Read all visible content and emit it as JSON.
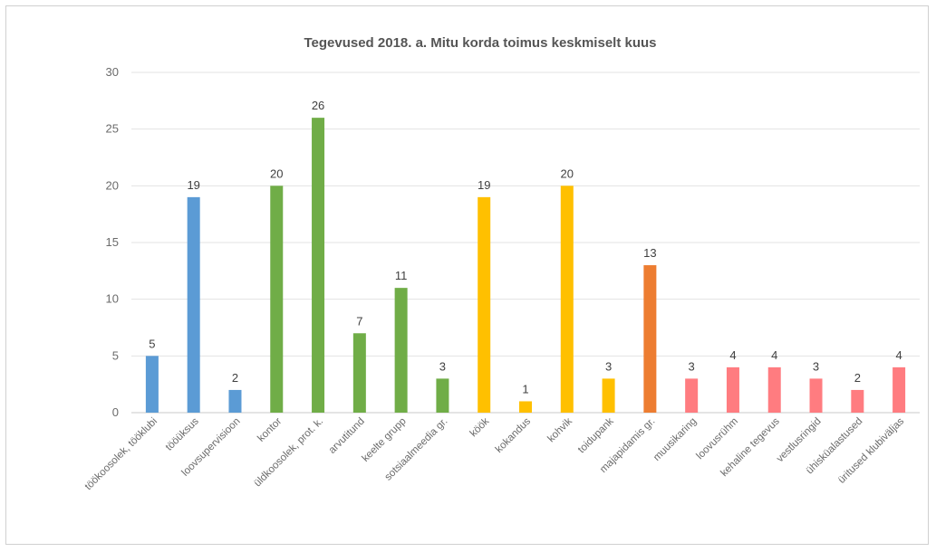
{
  "chart_data": {
    "type": "bar",
    "title": "Tegevused 2018. a. Mitu korda toimus keskmiselt kuus",
    "xlabel": "",
    "ylabel": "",
    "ylim": [
      0,
      30
    ],
    "yticks": [
      0,
      5,
      10,
      15,
      20,
      25,
      30
    ],
    "grid": true,
    "legend": "none",
    "categories": [
      "töökoosolek, tööklubi",
      "tööüksus",
      "loovsupervisioon",
      "kontor",
      "üldkoosolek, prot. k.",
      "arvutitund",
      "keelte grupp",
      "sotsiaalmeedia gr.",
      "köök",
      "kokandus",
      "kohvik",
      "toidupank",
      "majapidamis gr.",
      "muusikaring",
      "loovusrühm",
      "kehaline tegevus",
      "vestlusringid",
      "ühisküalastused",
      "üritused klubiväljas"
    ],
    "values": [
      5,
      19,
      2,
      20,
      26,
      7,
      11,
      3,
      19,
      1,
      20,
      3,
      13,
      3,
      4,
      4,
      3,
      2,
      4
    ],
    "colors": [
      "#5b9bd5",
      "#5b9bd5",
      "#5b9bd5",
      "#70ad47",
      "#70ad47",
      "#70ad47",
      "#70ad47",
      "#70ad47",
      "#ffc000",
      "#ffc000",
      "#ffc000",
      "#ffc000",
      "#ed7d31",
      "#ff7c80",
      "#ff7c80",
      "#ff7c80",
      "#ff7c80",
      "#ff7c80",
      "#ff7c80"
    ]
  }
}
